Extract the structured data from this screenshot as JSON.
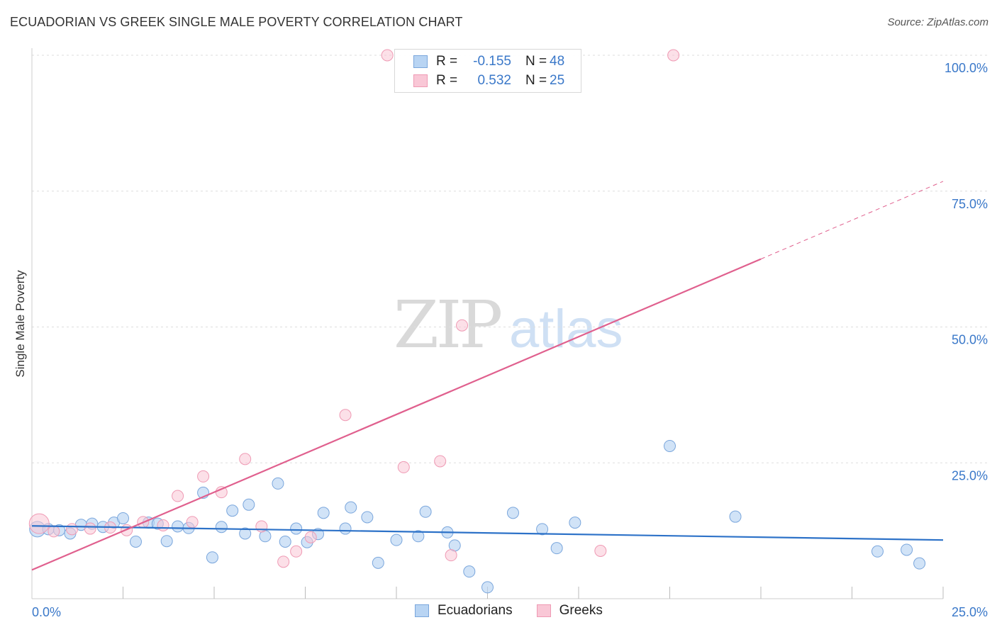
{
  "header": {
    "title": "ECUADORIAN VS GREEK SINGLE MALE POVERTY CORRELATION CHART",
    "source": "Source: ZipAtlas.com"
  },
  "legend": {
    "rows": [
      {
        "r_label": "R =",
        "r_value": "-0.155",
        "n_label": "N =",
        "n_value": "48"
      },
      {
        "r_label": "R =",
        "r_value": "0.532",
        "n_label": "N =",
        "n_value": "25"
      }
    ]
  },
  "bottom_legend": {
    "items": [
      {
        "label": "Ecuadorians"
      },
      {
        "label": "Greeks"
      }
    ]
  },
  "colors": {
    "blue_fill": "#b8d4f3",
    "blue_stroke": "#7aa6dc",
    "blue_line": "#2d72c8",
    "pink_fill": "#f9c7d6",
    "pink_stroke": "#ef9ab4",
    "pink_line": "#e0608e",
    "axis_label": "#3a78c9",
    "grid": "#dddddd"
  },
  "chart_data": {
    "type": "scatter",
    "title": "ECUADORIAN VS GREEK SINGLE MALE POVERTY CORRELATION CHART",
    "xlabel": "",
    "ylabel": "Single Male Poverty",
    "xlim": [
      0,
      25
    ],
    "ylim": [
      0,
      100
    ],
    "x_tick_labels": [
      "0.0%",
      "25.0%"
    ],
    "y_ticks": [
      25,
      50,
      75,
      100
    ],
    "y_tick_labels": [
      "25.0%",
      "50.0%",
      "75.0%",
      "100.0%"
    ],
    "watermark": {
      "zip": "ZIP",
      "atlas": "atlas"
    },
    "series": [
      {
        "name": "Ecuadorians",
        "r": -0.155,
        "n": 48,
        "points": [
          [
            0.15,
            12.8
          ],
          [
            0.45,
            12.8
          ],
          [
            0.75,
            12.6
          ],
          [
            1.05,
            12.0
          ],
          [
            1.35,
            13.6
          ],
          [
            1.65,
            13.8
          ],
          [
            1.95,
            13.2
          ],
          [
            2.25,
            14.0
          ],
          [
            2.5,
            14.8
          ],
          [
            2.85,
            10.5
          ],
          [
            3.2,
            14.0
          ],
          [
            3.45,
            13.8
          ],
          [
            3.7,
            10.6
          ],
          [
            4.0,
            13.3
          ],
          [
            4.3,
            13.0
          ],
          [
            4.7,
            19.5
          ],
          [
            4.95,
            7.6
          ],
          [
            5.2,
            13.2
          ],
          [
            5.5,
            16.2
          ],
          [
            5.85,
            12.0
          ],
          [
            5.95,
            17.3
          ],
          [
            6.4,
            11.5
          ],
          [
            6.75,
            21.2
          ],
          [
            6.95,
            10.5
          ],
          [
            7.25,
            12.9
          ],
          [
            7.55,
            10.4
          ],
          [
            7.85,
            11.9
          ],
          [
            8.0,
            15.8
          ],
          [
            8.6,
            12.9
          ],
          [
            8.75,
            16.8
          ],
          [
            9.2,
            15.0
          ],
          [
            9.5,
            6.6
          ],
          [
            10.0,
            10.8
          ],
          [
            10.6,
            11.5
          ],
          [
            10.8,
            16.0
          ],
          [
            11.4,
            12.2
          ],
          [
            11.6,
            9.8
          ],
          [
            12.0,
            5.0
          ],
          [
            12.5,
            2.1
          ],
          [
            13.2,
            15.8
          ],
          [
            14.0,
            12.8
          ],
          [
            14.4,
            9.3
          ],
          [
            14.9,
            14.0
          ],
          [
            17.5,
            28.1
          ],
          [
            19.3,
            15.1
          ],
          [
            23.2,
            8.7
          ],
          [
            24.0,
            9.0
          ],
          [
            24.35,
            6.5
          ]
        ],
        "trend": {
          "x0": 0,
          "y0": 13.4,
          "x1": 25,
          "y1": 10.8
        }
      },
      {
        "name": "Greeks",
        "r": 0.532,
        "n": 25,
        "points": [
          [
            0.2,
            13.8
          ],
          [
            0.6,
            12.4
          ],
          [
            1.1,
            12.8
          ],
          [
            1.6,
            12.9
          ],
          [
            2.15,
            13.1
          ],
          [
            2.6,
            12.6
          ],
          [
            3.05,
            14.1
          ],
          [
            3.6,
            13.5
          ],
          [
            4.0,
            18.9
          ],
          [
            4.4,
            14.1
          ],
          [
            4.7,
            22.5
          ],
          [
            5.2,
            19.6
          ],
          [
            5.85,
            25.7
          ],
          [
            6.3,
            13.3
          ],
          [
            6.9,
            6.8
          ],
          [
            7.25,
            8.7
          ],
          [
            7.65,
            11.3
          ],
          [
            8.6,
            33.8
          ],
          [
            9.75,
            100.0
          ],
          [
            10.2,
            24.2
          ],
          [
            11.2,
            25.3
          ],
          [
            11.5,
            8.0
          ],
          [
            11.8,
            50.3
          ],
          [
            15.6,
            8.8
          ],
          [
            17.6,
            100.0
          ]
        ],
        "trend_solid": {
          "x0": 0,
          "y0": 5.3,
          "x1": 20,
          "y1": 62.5
        },
        "trend_dashed": {
          "x0": 20,
          "y0": 62.5,
          "x1": 25,
          "y1": 76.8
        }
      }
    ]
  }
}
